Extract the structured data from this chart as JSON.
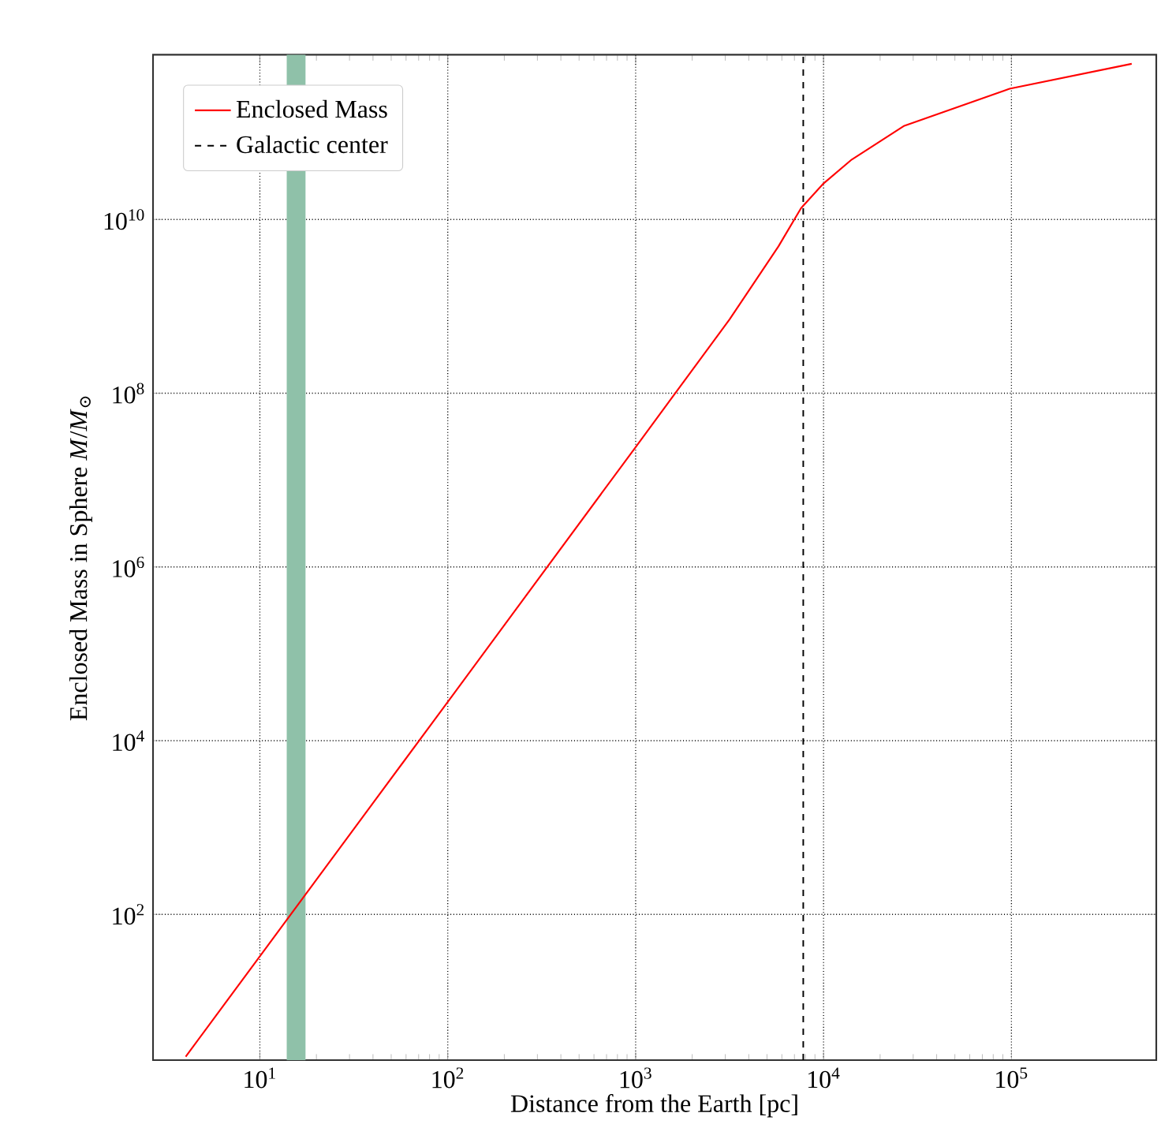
{
  "chart_data": {
    "type": "line",
    "xlabel": "Distance from the Earth [pc]",
    "ylabel": "Enclosed Mass in Sphere *M*/*M*$_{⊙}$",
    "log": "xy",
    "xlim": [
      2.7,
      590000
    ],
    "ylim": [
      2.1,
      790000000000
    ],
    "xticks": [
      {
        "value": 10,
        "label": "10$^{1}$"
      },
      {
        "value": 100,
        "label": "10$^{2}$"
      },
      {
        "value": 1000,
        "label": "10$^{3}$"
      },
      {
        "value": 10000,
        "label": "10$^{4}$"
      },
      {
        "value": 100000,
        "label": "10$^{5}$"
      }
    ],
    "yticks": [
      {
        "value": 100,
        "label": "10$^{2}$"
      },
      {
        "value": 10000,
        "label": "10$^{4}$"
      },
      {
        "value": 1000000,
        "label": "10$^{6}$"
      },
      {
        "value": 100000000,
        "label": "10$^{8}$"
      },
      {
        "value": 10000000000,
        "label": "10$^{10}$"
      }
    ],
    "grid": true,
    "legend": "top left",
    "series": [
      {
        "name": "Enclosed Mass",
        "color": "#ff0000",
        "x": [
          4.03,
          10,
          100,
          1000,
          3162,
          5754,
          7586,
          10000,
          14125,
          26915,
          97724,
          436516
        ],
        "values": [
          2.3,
          33,
          28000,
          24000000,
          710000000,
          4900000000,
          13500000000,
          26000000000,
          49000000000,
          120000000000,
          320000000000,
          620000000000
        ]
      }
    ],
    "ref_lines": [
      {
        "axis": "x",
        "value": 7800,
        "label": "Galactic center",
        "color": "#000000",
        "line_style": "dashed"
      }
    ],
    "bands": [
      {
        "axis": "x",
        "from": 13.9,
        "to": 17.5,
        "color": "#8fc1a9"
      }
    ]
  }
}
